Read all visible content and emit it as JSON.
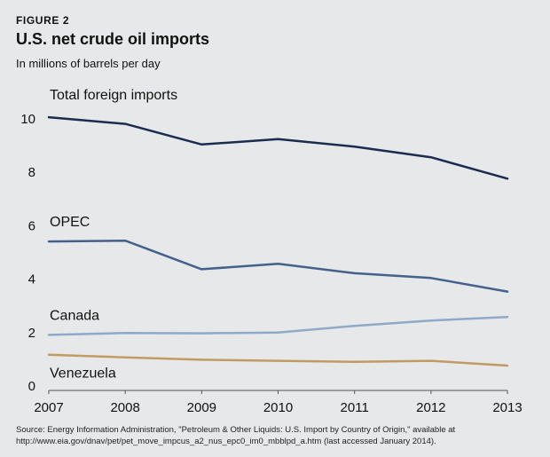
{
  "figure": {
    "label": "FIGURE 2",
    "title": "U.S. net crude oil imports",
    "subtitle": "In millions of barrels per day",
    "source": "Source: Energy Information Administration, \"Petroleum & Other Liquids: U.S. Import by Country of Origin,\" available at http://www.eia.gov/dnav/pet/pet_move_impcus_a2_nus_epc0_im0_mbblpd_a.htm (last accessed January 2014)."
  },
  "chart_data": {
    "type": "line",
    "x": [
      2007,
      2008,
      2009,
      2010,
      2011,
      2012,
      2013
    ],
    "ylim": [
      0,
      10
    ],
    "yticks": [
      0,
      2,
      4,
      6,
      8,
      10
    ],
    "grid": false,
    "legend": "direct labels above each line",
    "series": [
      {
        "name": "Total foreign imports",
        "color": "#1c2b50",
        "values": [
          10.03,
          9.78,
          9.01,
          9.21,
          8.93,
          8.53,
          7.73
        ]
      },
      {
        "name": "OPEC",
        "color": "#44618d",
        "values": [
          5.38,
          5.41,
          4.34,
          4.54,
          4.19,
          4.01,
          3.5
        ]
      },
      {
        "name": "Canada",
        "color": "#8fa9c9",
        "values": [
          1.88,
          1.95,
          1.94,
          1.97,
          2.22,
          2.42,
          2.55
        ]
      },
      {
        "name": "Venezuela",
        "color": "#c19c62",
        "values": [
          1.14,
          1.04,
          0.95,
          0.91,
          0.87,
          0.91,
          0.73
        ]
      }
    ]
  }
}
